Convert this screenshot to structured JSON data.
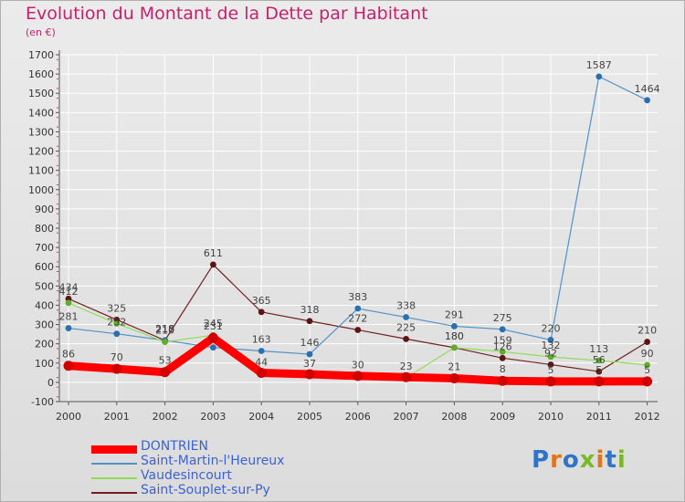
{
  "header": {
    "title": "Evolution du Montant de la Dette par Habitant",
    "subtitle": "(en €)"
  },
  "logo": {
    "text": "Proxiti",
    "letter_colors": [
      "#2e75c9",
      "#e0761a",
      "#2e75c9",
      "#7ab828",
      "#e0761a",
      "#2e75c9",
      "#7ab828"
    ]
  },
  "chart_data": {
    "type": "line",
    "title": "Evolution du Montant de la Dette par Habitant",
    "subtitle": "(en €)",
    "xlabel": "",
    "ylabel": "",
    "x": [
      "2000",
      "2001",
      "2002",
      "2003",
      "2004",
      "2005",
      "2006",
      "2007",
      "2008",
      "2009",
      "2010",
      "2011",
      "2012"
    ],
    "ylim": [
      -100,
      1700
    ],
    "yticks": [
      "-100",
      "0",
      "100",
      "200",
      "300",
      "400",
      "500",
      "600",
      "700",
      "800",
      "900",
      "1000",
      "1100",
      "1200",
      "1300",
      "1400",
      "1500",
      "1600",
      "1700"
    ],
    "grid": true,
    "legend_position": "bottom-left",
    "series": [
      {
        "name": "DONTRIEN",
        "color": "#ff0000",
        "values": [
          86,
          70,
          53,
          231,
          49,
          42,
          33,
          27,
          21,
          8,
          5,
          5,
          5
        ],
        "labels": [
          "86",
          "70",
          "53",
          "231",
          "",
          "",
          "",
          "",
          "21",
          "8",
          "5",
          "5",
          "5"
        ]
      },
      {
        "name": "Saint-Martin-l'Heureux",
        "color": "#4f91c9",
        "values": [
          281,
          252,
          218,
          181,
          163,
          146,
          383,
          338,
          291,
          275,
          220,
          1587,
          1464
        ],
        "labels": [
          "281",
          "252",
          "218",
          "",
          "163",
          "146",
          "383",
          "338",
          "291",
          "275",
          "220",
          "1587",
          "1464"
        ]
      },
      {
        "name": "Vaudesincourt",
        "color": "#8fdb5a",
        "values": [
          412,
          305,
          210,
          245,
          44,
          37,
          30,
          23,
          180,
          159,
          132,
          113,
          90
        ],
        "labels": [
          "412",
          "",
          "210",
          "245",
          "44",
          "37",
          "30",
          "23",
          "180",
          "159",
          "132",
          "113",
          "90"
        ]
      },
      {
        "name": "Saint-Souplet-sur-Py",
        "color": "#732021",
        "values": [
          434,
          325,
          218,
          611,
          365,
          318,
          272,
          225,
          180,
          126,
          92,
          56,
          210
        ],
        "labels": [
          "434",
          "325",
          "218",
          "611",
          "365",
          "318",
          "272",
          "225",
          "180",
          "126",
          "92",
          "56",
          "210"
        ]
      }
    ]
  }
}
